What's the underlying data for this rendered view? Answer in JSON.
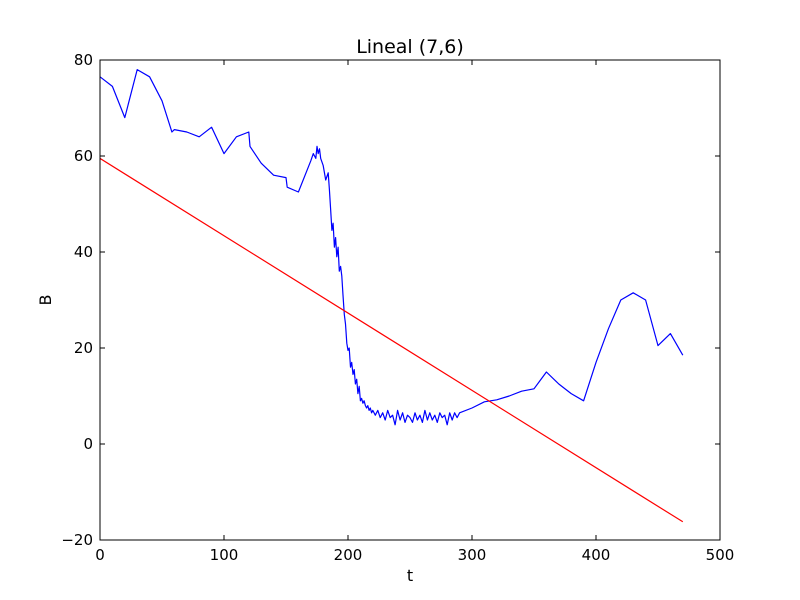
{
  "chart_data": {
    "type": "line",
    "title": "Lineal (7,6)",
    "xlabel": "t",
    "ylabel": "B",
    "xlim": [
      0,
      500
    ],
    "ylim": [
      -20,
      80
    ],
    "xticks": [
      0,
      100,
      200,
      300,
      400,
      500
    ],
    "yticks": [
      -20,
      0,
      20,
      40,
      60,
      80
    ],
    "xtick_labels": [
      "0",
      "100",
      "200",
      "300",
      "400",
      "500"
    ],
    "ytick_labels": [
      "−20",
      "0",
      "20",
      "40",
      "60",
      "80"
    ],
    "grid": false,
    "legend": "none",
    "series": [
      {
        "color": "#0000ff",
        "x": [
          0,
          10,
          20,
          30,
          40,
          50,
          58,
          60,
          70,
          80,
          90,
          100,
          110,
          120,
          121,
          130,
          140,
          150,
          151,
          160,
          170,
          172,
          174,
          175,
          176,
          177,
          178,
          180,
          182,
          184,
          185,
          186,
          187,
          188,
          189,
          190,
          191,
          192,
          193,
          194,
          195,
          196,
          197,
          198,
          199,
          200,
          201,
          202,
          203,
          204,
          205,
          206,
          207,
          208,
          209,
          210,
          211,
          212,
          213,
          214,
          215,
          216,
          217,
          218,
          219,
          220,
          222,
          224,
          226,
          228,
          230,
          232,
          234,
          236,
          238,
          240,
          242,
          244,
          246,
          248,
          250,
          252,
          254,
          256,
          258,
          260,
          262,
          264,
          266,
          268,
          270,
          272,
          274,
          276,
          278,
          280,
          282,
          284,
          286,
          288,
          290,
          300,
          310,
          320,
          330,
          340,
          350,
          360,
          370,
          380,
          390,
          400,
          410,
          420,
          430,
          440,
          450,
          460,
          470
        ],
        "y": [
          76.5,
          74.5,
          68.0,
          78.0,
          76.5,
          71.5,
          65.0,
          65.5,
          65.0,
          64.0,
          66.0,
          60.5,
          64.0,
          65.0,
          62.0,
          58.5,
          56.0,
          55.5,
          53.5,
          52.5,
          59.0,
          60.5,
          59.5,
          62.0,
          60.5,
          61.5,
          59.5,
          58.0,
          55.0,
          56.5,
          53.0,
          49.0,
          44.5,
          46.0,
          41.0,
          43.0,
          39.0,
          41.0,
          36.0,
          37.0,
          35.0,
          31.0,
          27.0,
          25.0,
          21.0,
          19.5,
          20.0,
          16.0,
          17.0,
          14.5,
          15.5,
          12.5,
          13.5,
          10.5,
          12.0,
          9.0,
          9.5,
          8.5,
          9.0,
          8.0,
          7.5,
          8.0,
          7.0,
          7.5,
          6.5,
          7.0,
          6.0,
          7.0,
          5.5,
          6.5,
          5.0,
          7.0,
          5.5,
          6.0,
          4.0,
          7.0,
          5.0,
          6.5,
          4.5,
          6.0,
          5.5,
          4.5,
          6.5,
          5.0,
          6.0,
          4.5,
          7.0,
          5.0,
          6.5,
          5.0,
          6.0,
          4.5,
          6.5,
          5.5,
          6.0,
          4.0,
          6.5,
          5.0,
          6.5,
          5.5,
          6.5,
          7.5,
          8.8,
          9.2,
          10.0,
          11.0,
          11.5,
          15.0,
          12.5,
          10.5,
          9.0,
          17.0,
          24.0,
          30.0,
          31.5,
          30.0,
          20.5,
          23.0,
          18.5
        ]
      },
      {
        "color": "#ff0000",
        "x": [
          0,
          470
        ],
        "y": [
          59.5,
          -16.2
        ]
      }
    ]
  }
}
